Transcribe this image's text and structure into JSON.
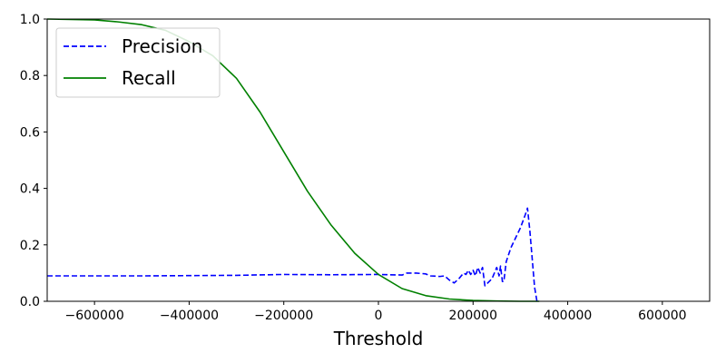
{
  "chart_data": {
    "type": "line",
    "title": "",
    "xlabel": "Threshold",
    "ylabel": "",
    "xlim": [
      -700000,
      700000
    ],
    "ylim": [
      0,
      1
    ],
    "grid": false,
    "legend_position": "top-left",
    "x_ticks": [
      -600000,
      -400000,
      -200000,
      0,
      200000,
      400000,
      600000
    ],
    "x_tick_labels": [
      "−600000",
      "−400000",
      "−200000",
      "0",
      "200000",
      "400000",
      "600000"
    ],
    "y_ticks": [
      0.0,
      0.2,
      0.4,
      0.6,
      0.8,
      1.0
    ],
    "y_tick_labels": [
      "0.0",
      "0.2",
      "0.4",
      "0.6",
      "0.8",
      "1.0"
    ],
    "series": [
      {
        "name": "Precision",
        "color": "#0000ff",
        "style": "dashed",
        "x": [
          -700000,
          -500000,
          -300000,
          -200000,
          -100000,
          0,
          50000,
          60000,
          80000,
          100000,
          110000,
          130000,
          140000,
          150000,
          160000,
          170000,
          180000,
          185000,
          190000,
          195000,
          200000,
          205000,
          210000,
          215000,
          220000,
          225000,
          240000,
          250000,
          255000,
          258000,
          262000,
          265000,
          270000,
          280000,
          300000,
          310000,
          315000,
          320000,
          330000,
          335000
        ],
        "y": [
          0.09,
          0.09,
          0.092,
          0.095,
          0.094,
          0.095,
          0.093,
          0.1,
          0.1,
          0.097,
          0.09,
          0.088,
          0.09,
          0.075,
          0.065,
          0.08,
          0.1,
          0.095,
          0.11,
          0.095,
          0.11,
          0.09,
          0.12,
          0.1,
          0.12,
          0.055,
          0.08,
          0.12,
          0.09,
          0.125,
          0.07,
          0.07,
          0.14,
          0.19,
          0.26,
          0.305,
          0.33,
          0.25,
          0.05,
          0.0
        ]
      },
      {
        "name": "Recall",
        "color": "#008000",
        "style": "solid",
        "x": [
          -700000,
          -600000,
          -550000,
          -500000,
          -450000,
          -400000,
          -350000,
          -300000,
          -250000,
          -200000,
          -150000,
          -100000,
          -50000,
          0,
          50000,
          100000,
          150000,
          200000,
          250000,
          300000,
          340000
        ],
        "y": [
          1.0,
          0.997,
          0.99,
          0.98,
          0.96,
          0.92,
          0.87,
          0.79,
          0.67,
          0.53,
          0.39,
          0.27,
          0.17,
          0.095,
          0.045,
          0.02,
          0.008,
          0.003,
          0.001,
          0.0,
          0.0
        ]
      }
    ]
  }
}
